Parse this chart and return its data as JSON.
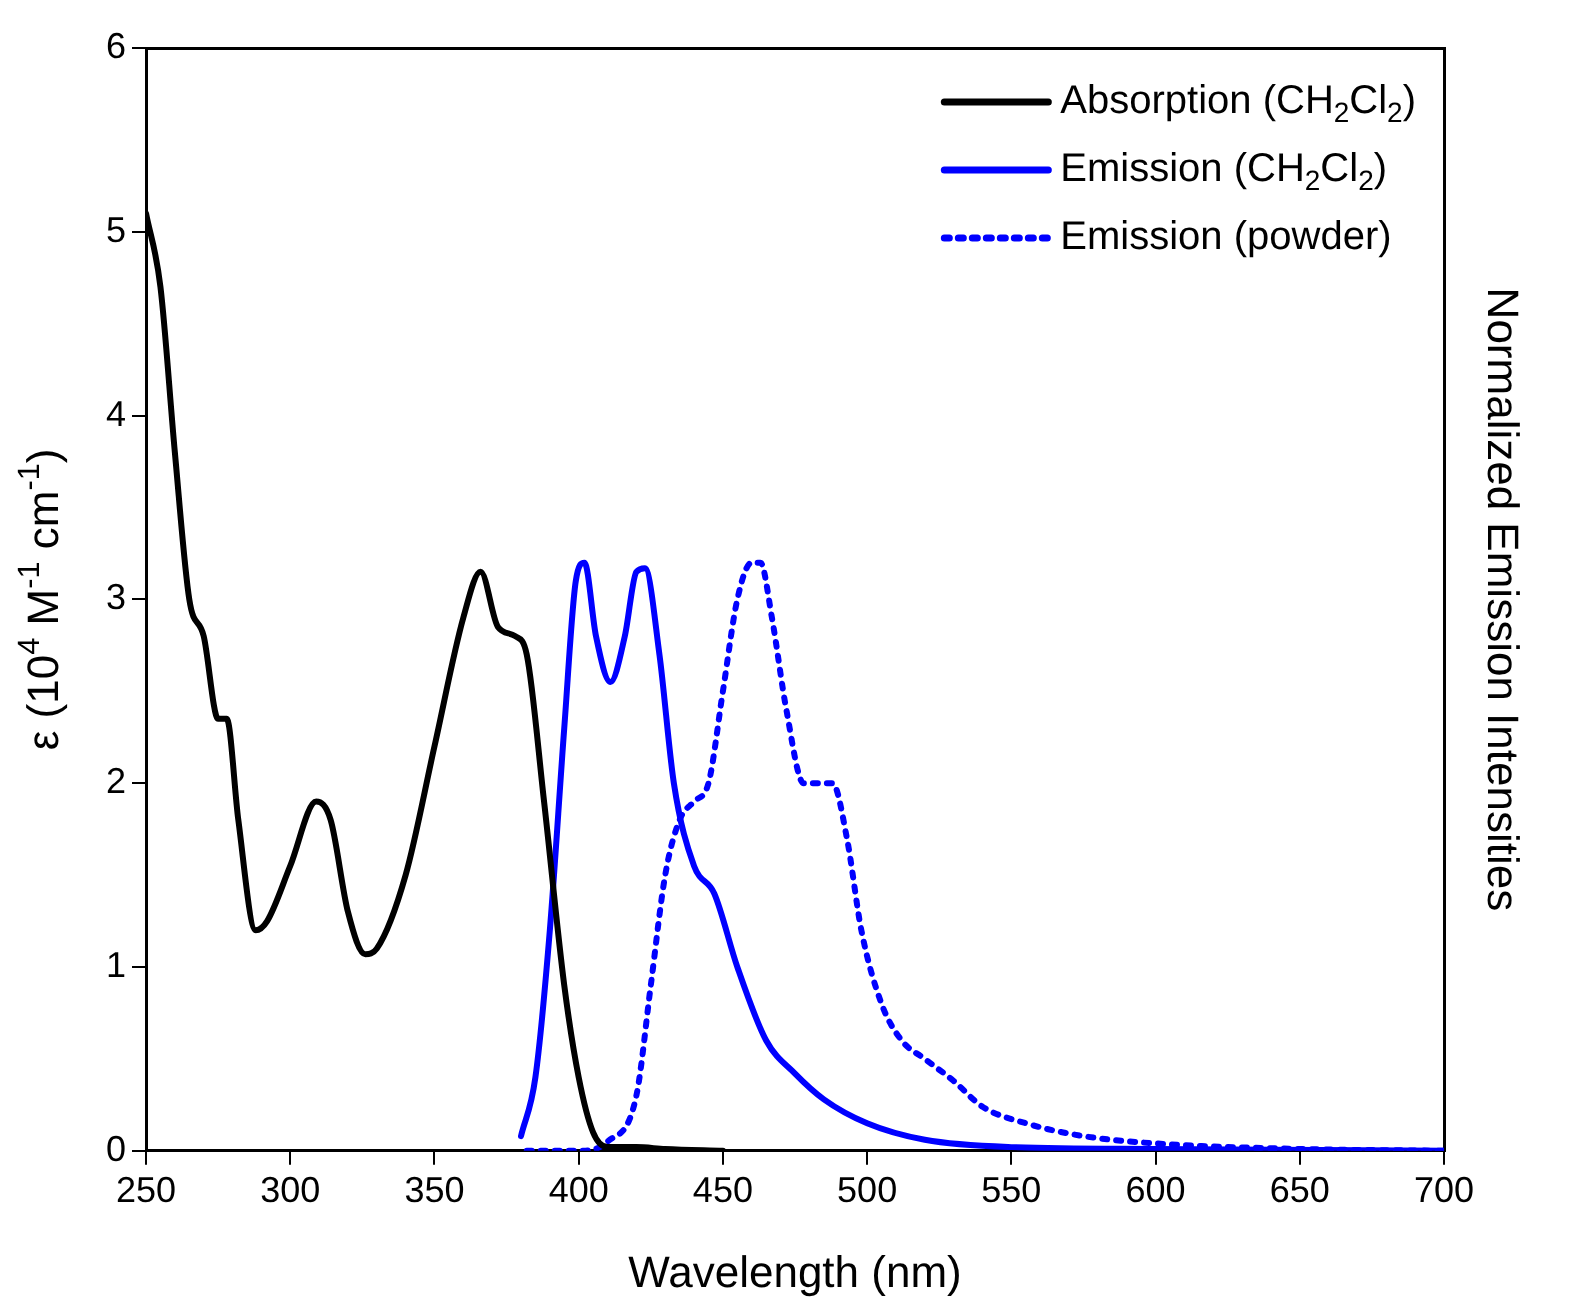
{
  "chart_data": {
    "type": "line",
    "xlabel": "Wavelength (nm)",
    "ylabel": "ε (10$^{4}$ M$^{-1}$ cm$^{-1}$)",
    "y2label": "Normalized Emission Intensities",
    "xlim": [
      250,
      700
    ],
    "xticks": [
      250,
      300,
      350,
      400,
      450,
      500,
      550,
      600,
      650,
      700
    ],
    "ylim": [
      0,
      6
    ],
    "yticks": [
      0,
      1,
      2,
      3,
      4,
      5,
      6
    ],
    "grid": false,
    "legend": "top right",
    "marker": "none",
    "series": [
      {
        "name": "Absorption (CH$_{2}$Cl$_{2}$)",
        "color": "#000000",
        "line_style": "solid",
        "x": [
          250,
          255,
          260,
          265,
          270,
          275,
          278,
          282,
          288,
          292,
          300,
          309,
          314,
          320,
          326,
          330,
          340,
          350,
          360,
          366,
          372,
          378,
          382,
          388,
          395,
          400,
          405,
          410,
          420,
          430,
          450
        ],
        "values": [
          5.1,
          4.7,
          3.8,
          3.0,
          2.8,
          2.35,
          2.35,
          1.8,
          1.2,
          1.25,
          1.55,
          1.9,
          1.8,
          1.3,
          1.07,
          1.1,
          1.5,
          2.2,
          2.9,
          3.15,
          2.85,
          2.8,
          2.7,
          1.9,
          0.9,
          0.4,
          0.1,
          0.02,
          0.02,
          0.01,
          0
        ]
      },
      {
        "name": "Emission (CH$_{2}$Cl$_{2}$)",
        "color": "#0000ff",
        "line_style": "solid",
        "x": [
          380,
          385,
          390,
          395,
          399,
          402,
          406,
          411,
          416,
          420,
          423,
          428,
          433,
          440,
          447,
          455,
          465,
          475,
          485,
          500,
          520,
          550,
          600,
          700
        ],
        "values": [
          0.08,
          0.4,
          1.2,
          2.3,
          3.1,
          3.2,
          2.8,
          2.55,
          2.8,
          3.15,
          3.17,
          2.7,
          2.0,
          1.55,
          1.4,
          1.0,
          0.6,
          0.42,
          0.28,
          0.15,
          0.06,
          0.02,
          0.01,
          0
        ]
      },
      {
        "name": "Emission (powder)",
        "color": "#0000ff",
        "line_style": "dotted",
        "x": [
          382,
          400,
          410,
          420,
          425,
          430,
          435,
          440,
          445,
          450,
          455,
          460,
          463,
          467,
          472,
          478,
          484,
          488,
          493,
          498,
          505,
          512,
          520,
          530,
          540,
          555,
          575,
          600,
          650,
          700
        ],
        "values": [
          0,
          0,
          0.05,
          0.3,
          0.9,
          1.5,
          1.8,
          1.9,
          2.0,
          2.5,
          3.0,
          3.2,
          3.2,
          2.9,
          2.4,
          2.0,
          2.0,
          2.0,
          1.7,
          1.2,
          0.8,
          0.6,
          0.5,
          0.38,
          0.24,
          0.15,
          0.08,
          0.04,
          0.01,
          0
        ]
      }
    ]
  }
}
